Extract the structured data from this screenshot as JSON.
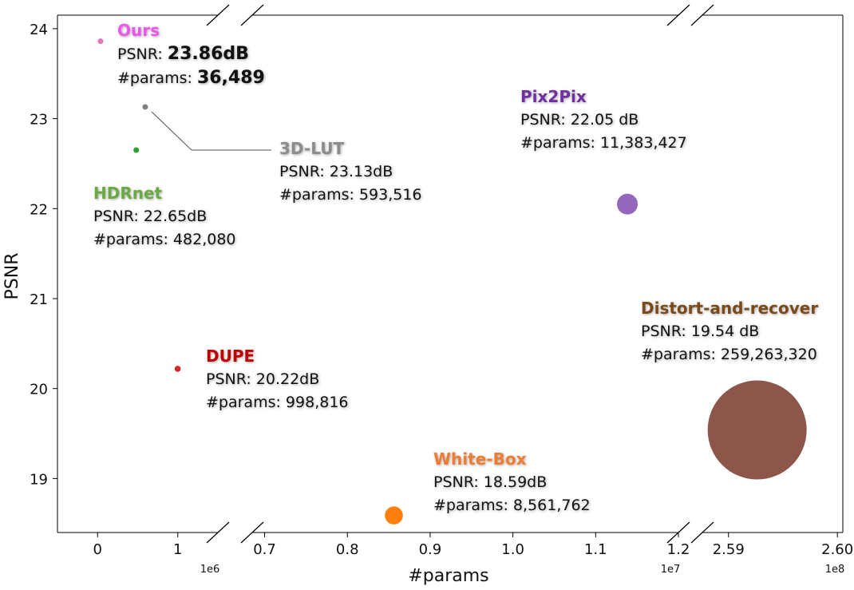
{
  "chart_data": {
    "type": "scatter",
    "title": "",
    "xlabel": "#params",
    "ylabel": "PSNR",
    "ylim": [
      18.4,
      24.15
    ],
    "y_ticks": [
      "19",
      "20",
      "21",
      "22",
      "23",
      "24"
    ],
    "x_segments": [
      {
        "range": [
          -0.5,
          1.5
        ],
        "ticks": [
          "0",
          "1"
        ],
        "scale": "1e6"
      },
      {
        "range": [
          0.685,
          1.2
        ],
        "ticks": [
          "0.7",
          "0.8",
          "0.9",
          "1.0",
          "1.1",
          "1.2"
        ],
        "scale": "1e7"
      },
      {
        "range": [
          2.5876,
          2.6005
        ],
        "ticks": [
          "2.59",
          "2.60"
        ],
        "scale": "1e8"
      }
    ],
    "points": [
      {
        "name": "Ours",
        "params": 36489,
        "psnr": 23.86,
        "color": "#e377c2",
        "psnr_prefix": "PSNR: ",
        "psnr_text": "23.86dB",
        "params_prefix": "#params: ",
        "params_text": "36,489"
      },
      {
        "name": "3D-LUT",
        "params": 593516,
        "psnr": 23.13,
        "color": "#7f7f7f",
        "psnr_text": "PSNR: 23.13dB",
        "params_text": "#params: 593,516"
      },
      {
        "name": "HDRnet",
        "params": 482080,
        "psnr": 22.65,
        "color": "#2ca02c",
        "psnr_text": "PSNR: 22.65dB",
        "params_text": "#params: 482,080"
      },
      {
        "name": "DUPE",
        "params": 998816,
        "psnr": 20.22,
        "color": "#d62728",
        "psnr_text": "PSNR: 20.22dB",
        "params_text": "#params: 998,816"
      },
      {
        "name": "White-Box",
        "params": 8561762,
        "psnr": 18.59,
        "color": "#ff7f0e",
        "psnr_text": "PSNR: 18.59dB",
        "params_text": "#params: 8,561,762"
      },
      {
        "name": "Pix2Pix",
        "params": 11383427,
        "psnr": 22.05,
        "color": "#9467bd",
        "psnr_text": "PSNR: 22.05 dB",
        "params_text": "#params: 11,383,427"
      },
      {
        "name": "Distort-and-recover",
        "params": 259263320,
        "psnr": 19.54,
        "color": "#8c564b",
        "psnr_text": "PSNR: 19.54 dB",
        "params_text": "#params: 259,263,320"
      }
    ],
    "label_colors": {
      "Ours": "#ee55ee",
      "3D-LUT": "#8c8c8c",
      "HDRnet": "#6aaa45",
      "DUPE": "#c00000",
      "White-Box": "#ed7d31",
      "Pix2Pix": "#7030a0",
      "Distort-and-recover": "#7a4a1a"
    }
  }
}
